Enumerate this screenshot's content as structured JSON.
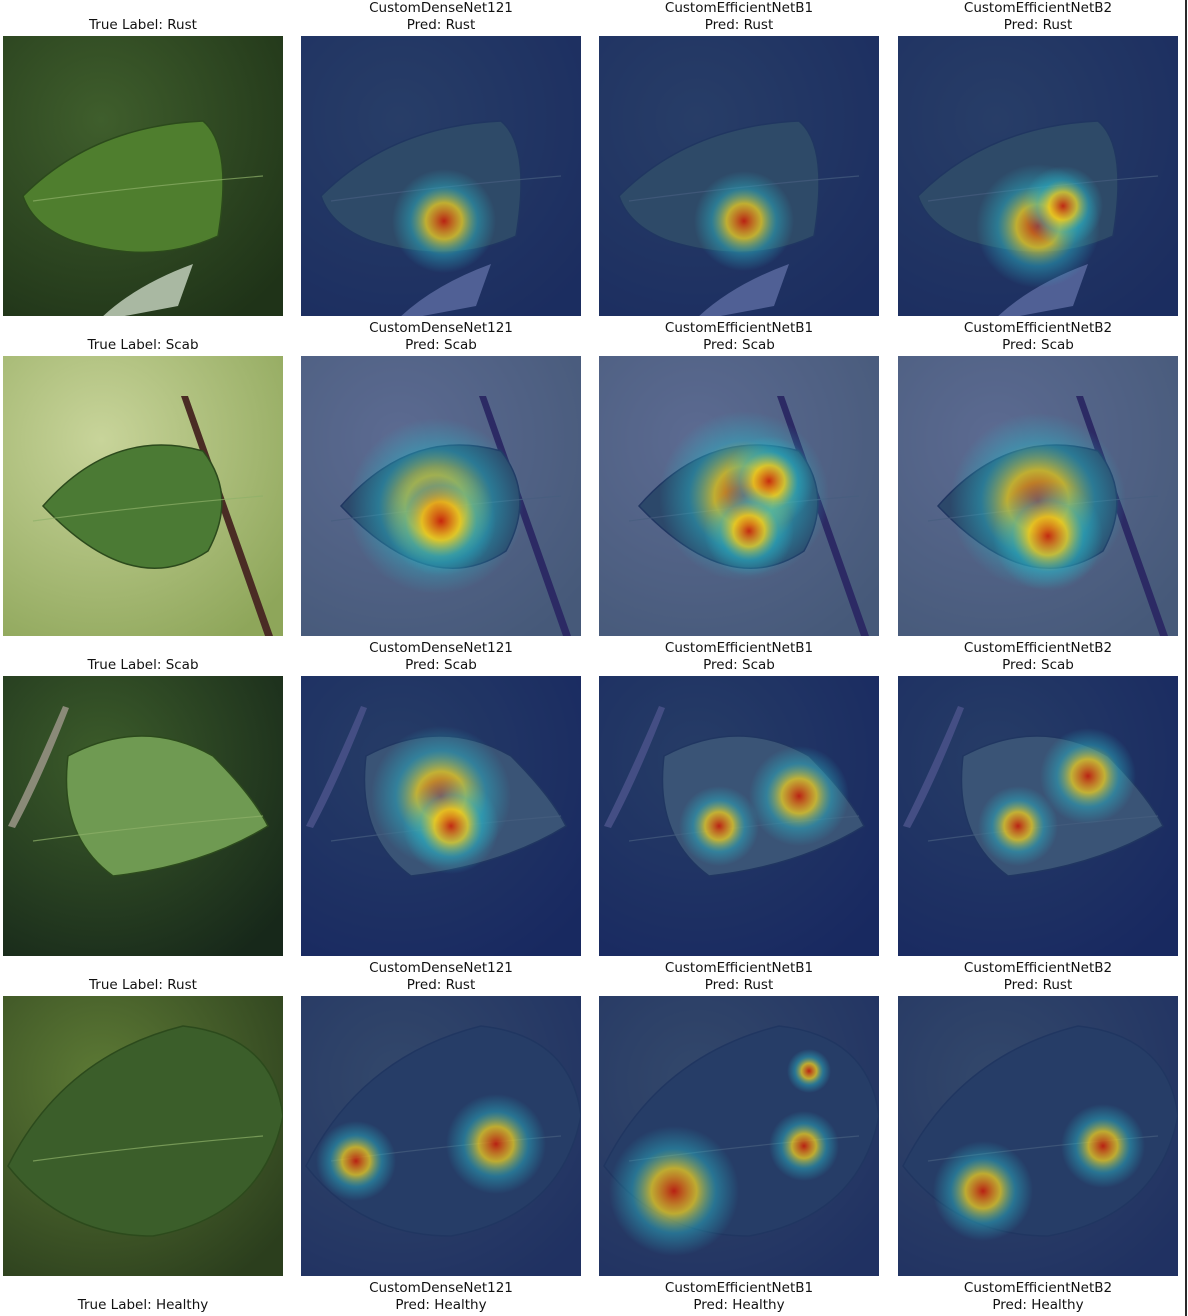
{
  "figure": {
    "rows": [
      {
        "true_label": "True Label: Rust",
        "panels": [
          {
            "model": "CustomDenseNet121",
            "pred": "Pred: Rust"
          },
          {
            "model": "CustomEfficientNetB1",
            "pred": "Pred: Rust"
          },
          {
            "model": "CustomEfficientNetB2",
            "pred": "Pred: Rust"
          }
        ]
      },
      {
        "true_label": "True Label: Scab",
        "panels": [
          {
            "model": "CustomDenseNet121",
            "pred": "Pred: Scab"
          },
          {
            "model": "CustomEfficientNetB1",
            "pred": "Pred: Scab"
          },
          {
            "model": "CustomEfficientNetB2",
            "pred": "Pred: Scab"
          }
        ]
      },
      {
        "true_label": "True Label: Scab",
        "panels": [
          {
            "model": "CustomDenseNet121",
            "pred": "Pred: Scab"
          },
          {
            "model": "CustomEfficientNetB1",
            "pred": "Pred: Scab"
          },
          {
            "model": "CustomEfficientNetB2",
            "pred": "Pred: Scab"
          }
        ]
      },
      {
        "true_label": "True Label: Rust",
        "panels": [
          {
            "model": "CustomDenseNet121",
            "pred": "Pred: Rust"
          },
          {
            "model": "CustomEfficientNetB1",
            "pred": "Pred: Rust"
          },
          {
            "model": "CustomEfficientNetB2",
            "pred": "Pred: Rust"
          }
        ]
      },
      {
        "true_label": "True Label: Healthy",
        "panels": [
          {
            "model": "CustomDenseNet121",
            "pred": "Pred: Healthy"
          },
          {
            "model": "CustomEfficientNetB1",
            "pred": "Pred: Healthy"
          },
          {
            "model": "CustomEfficientNetB2",
            "pred": "Pred: Healthy"
          }
        ]
      }
    ],
    "colors": {
      "overlay_base": "#1a2a8c",
      "heat_hot": "#c81e0a",
      "heat_warm": "#f0d020",
      "heat_cool": "#2ab6c8",
      "leaf_green": "#4a7a2c"
    }
  }
}
